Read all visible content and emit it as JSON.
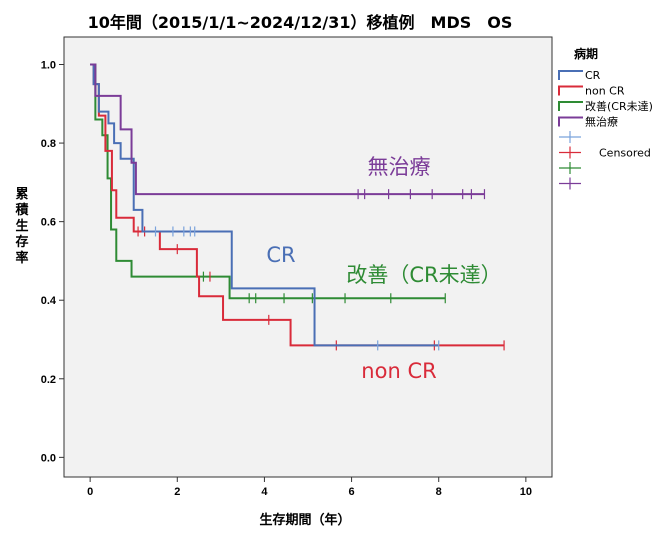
{
  "chart_data": {
    "type": "line",
    "step": true,
    "title": "10年間（2015/1/1~2024/12/31）移植例　MDS　OS",
    "xlabel": "生存期間（年）",
    "ylabel": "累積生存率",
    "xlim": [
      -0.6,
      10.6
    ],
    "ylim": [
      -0.05,
      1.07
    ],
    "xticks": [
      0,
      2,
      4,
      6,
      8,
      10
    ],
    "yticks": [
      0.0,
      0.2,
      0.4,
      0.6,
      0.8,
      1.0
    ],
    "grid": false,
    "legend": {
      "title": "病期",
      "placement": "right",
      "items": [
        "CR",
        "non CR",
        "改善(CR未達)",
        "無治療",
        "",
        "Censored",
        "",
        ""
      ]
    },
    "series": [
      {
        "name": "CR",
        "color": "#4a6fb5",
        "censor_color": "#7ba3dc",
        "annotation": "CR",
        "steps": [
          [
            0,
            1.0
          ],
          [
            0.08,
            0.95
          ],
          [
            0.2,
            0.88
          ],
          [
            0.42,
            0.85
          ],
          [
            0.55,
            0.8
          ],
          [
            0.7,
            0.76
          ],
          [
            1.0,
            0.63
          ],
          [
            1.2,
            0.575
          ],
          [
            3.25,
            0.43
          ],
          [
            5.15,
            0.285
          ],
          [
            8.0,
            0.285
          ]
        ],
        "censored": [
          [
            1.5,
            0.575
          ],
          [
            1.9,
            0.575
          ],
          [
            2.15,
            0.575
          ],
          [
            2.3,
            0.575
          ],
          [
            2.4,
            0.575
          ],
          [
            6.6,
            0.285
          ],
          [
            8.0,
            0.285
          ]
        ]
      },
      {
        "name": "non CR",
        "color": "#d92b3a",
        "censor_color": "#d92b3a",
        "annotation": "non CR",
        "steps": [
          [
            0,
            1.0
          ],
          [
            0.08,
            0.95
          ],
          [
            0.2,
            0.87
          ],
          [
            0.35,
            0.78
          ],
          [
            0.5,
            0.68
          ],
          [
            0.6,
            0.61
          ],
          [
            1.0,
            0.575
          ],
          [
            1.6,
            0.53
          ],
          [
            2.45,
            0.46
          ],
          [
            2.5,
            0.41
          ],
          [
            3.05,
            0.35
          ],
          [
            4.6,
            0.285
          ],
          [
            9.5,
            0.285
          ]
        ],
        "censored": [
          [
            1.1,
            0.575
          ],
          [
            1.25,
            0.575
          ],
          [
            2.0,
            0.53
          ],
          [
            2.75,
            0.46
          ],
          [
            4.1,
            0.35
          ],
          [
            5.65,
            0.285
          ],
          [
            7.9,
            0.285
          ],
          [
            9.5,
            0.285
          ]
        ]
      },
      {
        "name": "改善(CR未達)",
        "color": "#2e8b34",
        "censor_color": "#2e8b34",
        "annotation": "改善（CR未達）",
        "steps": [
          [
            0,
            1.0
          ],
          [
            0.12,
            0.86
          ],
          [
            0.28,
            0.82
          ],
          [
            0.4,
            0.71
          ],
          [
            0.48,
            0.58
          ],
          [
            0.6,
            0.5
          ],
          [
            0.95,
            0.46
          ],
          [
            3.2,
            0.405
          ],
          [
            8.15,
            0.405
          ]
        ],
        "censored": [
          [
            2.6,
            0.46
          ],
          [
            3.65,
            0.405
          ],
          [
            3.8,
            0.405
          ],
          [
            4.45,
            0.405
          ],
          [
            5.1,
            0.405
          ],
          [
            5.85,
            0.405
          ],
          [
            6.9,
            0.405
          ],
          [
            8.15,
            0.405
          ]
        ]
      },
      {
        "name": "無治療",
        "color": "#7b3c98",
        "censor_color": "#7b3c98",
        "annotation": "無治療",
        "steps": [
          [
            0,
            1.0
          ],
          [
            0.12,
            0.92
          ],
          [
            0.7,
            0.835
          ],
          [
            0.95,
            0.75
          ],
          [
            1.05,
            0.67
          ],
          [
            9.05,
            0.67
          ]
        ],
        "censored": [
          [
            6.15,
            0.67
          ],
          [
            6.3,
            0.67
          ],
          [
            6.85,
            0.67
          ],
          [
            7.35,
            0.67
          ],
          [
            7.85,
            0.67
          ],
          [
            8.55,
            0.67
          ],
          [
            8.75,
            0.67
          ],
          [
            9.05,
            0.67
          ]
        ]
      }
    ]
  }
}
